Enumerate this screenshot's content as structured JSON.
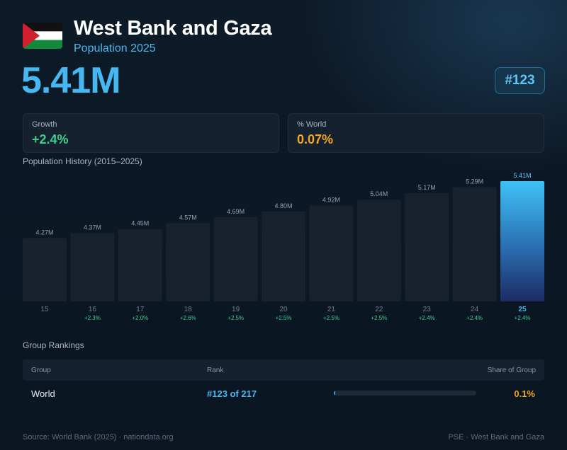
{
  "header": {
    "title": "West Bank and Gaza",
    "subtitle": "Population 2025",
    "population": "5.41M",
    "rank_badge": "#123"
  },
  "stats": {
    "growth_label": "Growth",
    "growth_value": "+2.4%",
    "world_label": "% World",
    "world_value": "0.07%"
  },
  "colors": {
    "accent": "#45b8f2",
    "growth": "#3ecf8e",
    "world": "#f5a623",
    "flag_black": "#111111",
    "flag_white": "#ffffff",
    "flag_green": "#14893c",
    "flag_red": "#d0202e"
  },
  "history_title": "Population History (2015–2025)",
  "chart_data": {
    "type": "bar",
    "categories": [
      "15",
      "16",
      "17",
      "18",
      "19",
      "20",
      "21",
      "22",
      "23",
      "24",
      "25"
    ],
    "values": [
      4.27,
      4.37,
      4.45,
      4.57,
      4.69,
      4.8,
      4.92,
      5.04,
      5.17,
      5.29,
      5.41
    ],
    "value_labels": [
      "4.27M",
      "4.37M",
      "4.45M",
      "4.57M",
      "4.69M",
      "4.80M",
      "4.92M",
      "5.04M",
      "5.17M",
      "5.29M",
      "5.41M"
    ],
    "growth_labels": [
      "",
      "+2.3%",
      "+2.0%",
      "+2.6%",
      "+2.5%",
      "+2.5%",
      "+2.5%",
      "+2.5%",
      "+2.4%",
      "+2.4%",
      "+2.4%"
    ],
    "highlight": "25",
    "unit": "M"
  },
  "rankings": {
    "title": "Group Rankings",
    "columns": [
      "Group",
      "Rank",
      "Share of Group"
    ],
    "rows": [
      {
        "group": "World",
        "rank": "#123 of 217",
        "share": "0.1%",
        "share_value": 0.1
      }
    ]
  },
  "footer": {
    "source": "Source: World Bank (2025) · nationdata.org",
    "code": "PSE · West Bank and Gaza"
  }
}
